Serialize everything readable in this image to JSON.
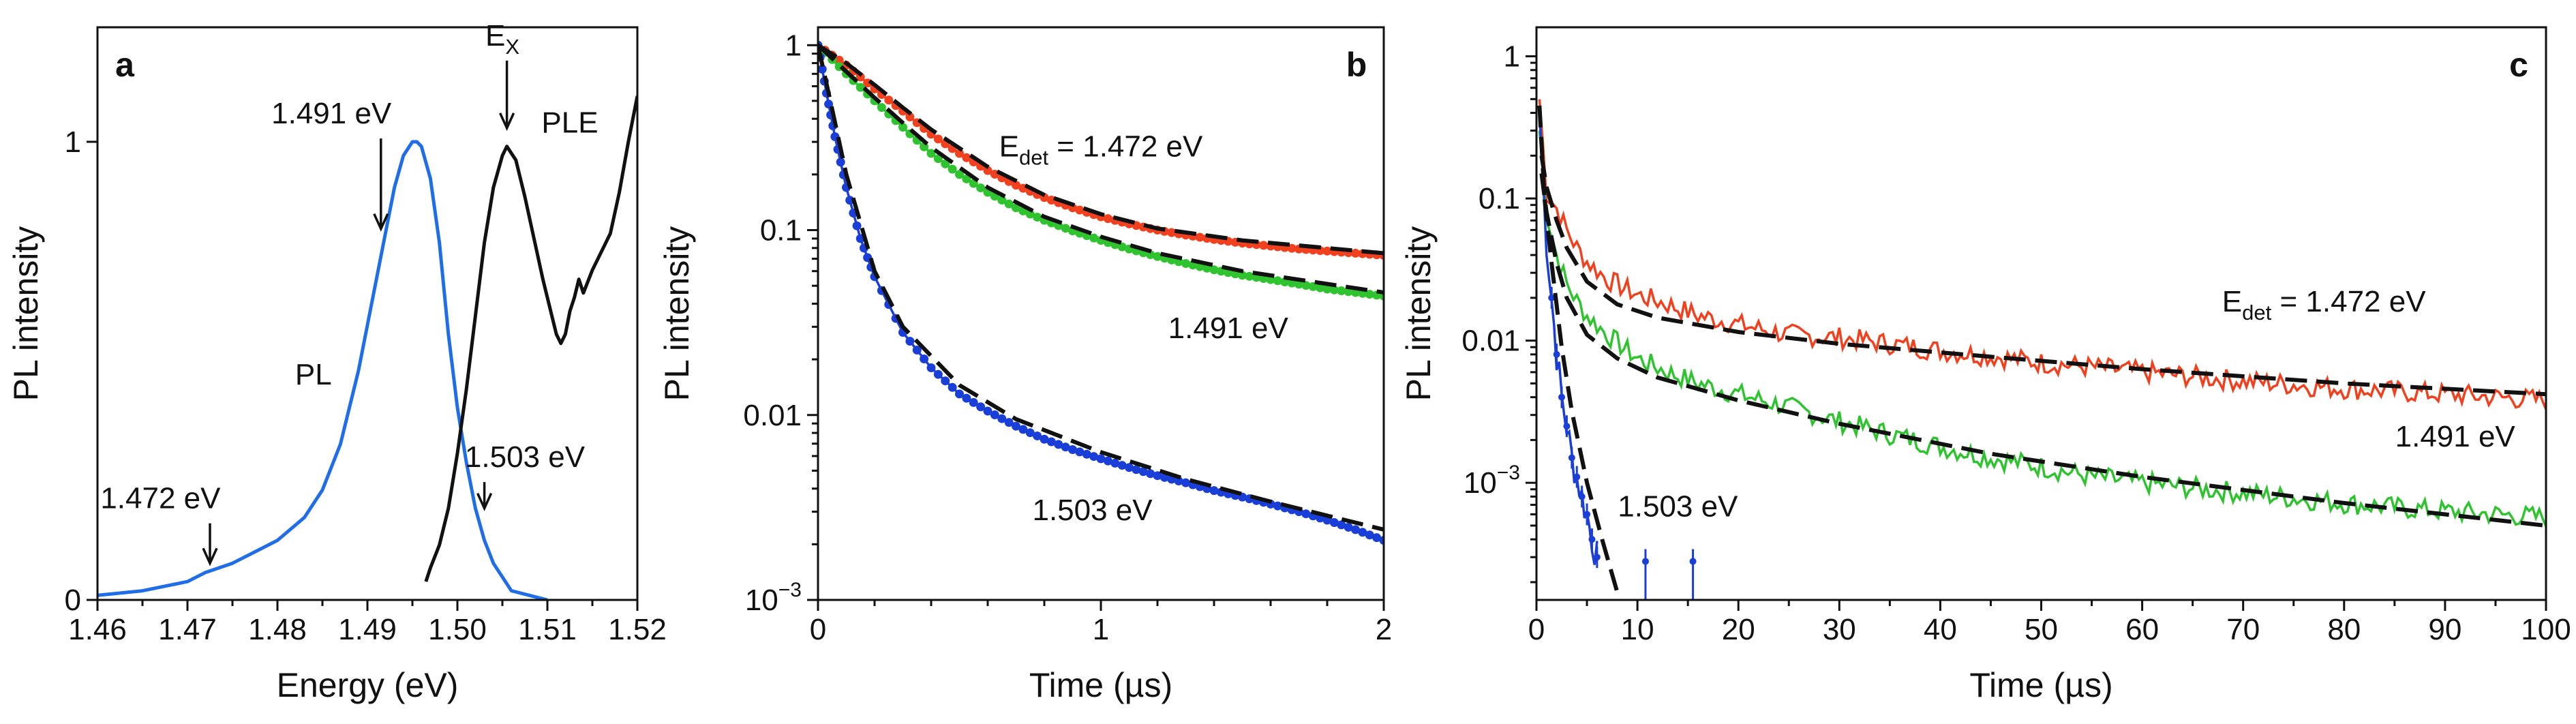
{
  "colors": {
    "blue": "#1f6ee8",
    "black": "#111111",
    "red": "#f0401e",
    "green": "#2fc42f",
    "navy": "#1a3fd8"
  },
  "chart_data": [
    {
      "type": "line",
      "panel_label": "a",
      "xlabel": "Energy (eV)",
      "ylabel": "PL intensity",
      "xlim": [
        1.46,
        1.52
      ],
      "ylim": [
        0,
        1.25
      ],
      "xticks": [
        "1.46",
        "1.47",
        "1.48",
        "1.49",
        "1.50",
        "1.51",
        "1.52"
      ],
      "yticks": [
        "0",
        "1"
      ],
      "series": [
        {
          "name": "PL",
          "color": "#1f6ee8",
          "x": [
            1.46,
            1.465,
            1.47,
            1.472,
            1.475,
            1.478,
            1.48,
            1.483,
            1.485,
            1.487,
            1.489,
            1.49,
            1.491,
            1.492,
            1.493,
            1.494,
            1.495,
            1.4955,
            1.496,
            1.497,
            1.498,
            1.499,
            1.5,
            1.501,
            1.502,
            1.503,
            1.504,
            1.505,
            1.506,
            1.508,
            1.51
          ],
          "y": [
            0.01,
            0.02,
            0.04,
            0.06,
            0.08,
            0.11,
            0.13,
            0.18,
            0.24,
            0.34,
            0.5,
            0.6,
            0.7,
            0.8,
            0.9,
            0.97,
            1.0,
            1.0,
            0.99,
            0.92,
            0.78,
            0.58,
            0.42,
            0.3,
            0.2,
            0.13,
            0.08,
            0.05,
            0.02,
            0.01,
            0.0
          ]
        },
        {
          "name": "PLE",
          "color": "#111111",
          "x": [
            1.4965,
            1.497,
            1.498,
            1.499,
            1.5,
            1.501,
            1.502,
            1.503,
            1.504,
            1.505,
            1.5055,
            1.5065,
            1.5075,
            1.5085,
            1.5095,
            1.5105,
            1.511,
            1.5115,
            1.512,
            1.5125,
            1.513,
            1.5135,
            1.514,
            1.515,
            1.516,
            1.517,
            1.518,
            1.519,
            1.5195,
            1.52
          ],
          "y": [
            0.04,
            0.07,
            0.12,
            0.2,
            0.32,
            0.46,
            0.62,
            0.78,
            0.9,
            0.97,
            0.99,
            0.96,
            0.88,
            0.79,
            0.7,
            0.62,
            0.58,
            0.56,
            0.58,
            0.63,
            0.66,
            0.7,
            0.67,
            0.72,
            0.76,
            0.8,
            0.89,
            1.0,
            1.05,
            1.1
          ]
        }
      ],
      "annotations": [
        {
          "text": "PL",
          "x": 1.484,
          "y": 0.47
        },
        {
          "text": "PLE",
          "x": 1.5125,
          "y": 1.02
        },
        {
          "text": "1.491 eV",
          "x": 1.486,
          "y": 1.04,
          "arrow_to": [
            1.4915,
            0.81
          ]
        },
        {
          "text": "1.472 eV",
          "x": 1.467,
          "y": 0.2,
          "arrow_to": [
            1.4725,
            0.08
          ]
        },
        {
          "text": "1.503 eV",
          "x": 1.5075,
          "y": 0.29,
          "arrow_to": [
            1.503,
            0.2
          ]
        },
        {
          "text": "E",
          "sub": "X",
          "x": 1.505,
          "y": 1.21,
          "arrow_to": [
            1.5055,
            1.03
          ]
        }
      ]
    },
    {
      "type": "line",
      "panel_label": "b",
      "xlabel": "Time (µs)",
      "ylabel": "PL intensity",
      "yscale": "log",
      "xlim": [
        0,
        2
      ],
      "ylim": [
        0.001,
        1.25
      ],
      "xticks": [
        "0",
        "1",
        "2"
      ],
      "yticks": [
        "1",
        "0.1",
        "0.01",
        "10^-3"
      ],
      "series": [
        {
          "name": "1.472 eV",
          "color": "#f0401e",
          "style": "markers",
          "x": [
            0,
            0.1,
            0.2,
            0.3,
            0.4,
            0.5,
            0.6,
            0.7,
            0.8,
            0.9,
            1.0,
            1.1,
            1.2,
            1.3,
            1.4,
            1.5,
            1.6,
            1.7,
            1.8,
            1.9,
            2.0
          ],
          "y": [
            1.0,
            0.78,
            0.58,
            0.44,
            0.33,
            0.26,
            0.21,
            0.175,
            0.15,
            0.132,
            0.118,
            0.108,
            0.1,
            0.094,
            0.089,
            0.085,
            0.082,
            0.079,
            0.077,
            0.075,
            0.073
          ]
        },
        {
          "name": "1.491 eV",
          "color": "#2fc42f",
          "style": "markers",
          "x": [
            0,
            0.1,
            0.2,
            0.3,
            0.4,
            0.5,
            0.6,
            0.7,
            0.8,
            0.9,
            1.0,
            1.1,
            1.2,
            1.3,
            1.4,
            1.5,
            1.6,
            1.7,
            1.8,
            1.9,
            2.0
          ],
          "y": [
            1.0,
            0.7,
            0.5,
            0.36,
            0.26,
            0.2,
            0.16,
            0.132,
            0.113,
            0.099,
            0.088,
            0.079,
            0.072,
            0.066,
            0.061,
            0.057,
            0.054,
            0.051,
            0.048,
            0.046,
            0.044
          ]
        },
        {
          "name": "1.503 eV",
          "color": "#1a3fd8",
          "style": "markers",
          "x": [
            0,
            0.03,
            0.06,
            0.1,
            0.15,
            0.2,
            0.3,
            0.4,
            0.5,
            0.6,
            0.7,
            0.8,
            0.9,
            1.0,
            1.1,
            1.2,
            1.3,
            1.4,
            1.5,
            1.6,
            1.7,
            1.8,
            1.9,
            2.0
          ],
          "y": [
            1.0,
            0.55,
            0.32,
            0.17,
            0.09,
            0.056,
            0.028,
            0.018,
            0.013,
            0.0105,
            0.0087,
            0.0074,
            0.0065,
            0.0058,
            0.0052,
            0.0047,
            0.0043,
            0.0039,
            0.0036,
            0.0033,
            0.003,
            0.0027,
            0.0024,
            0.0021
          ]
        },
        {
          "name": "fit 1.472 eV",
          "color": "#111111",
          "style": "dashed",
          "x": [
            0,
            0.1,
            0.2,
            0.3,
            0.4,
            0.6,
            0.8,
            1.0,
            1.2,
            1.5,
            2.0
          ],
          "y": [
            1.0,
            0.8,
            0.61,
            0.46,
            0.35,
            0.22,
            0.155,
            0.122,
            0.102,
            0.088,
            0.075
          ]
        },
        {
          "name": "fit 1.491 eV",
          "color": "#111111",
          "style": "dashed",
          "x": [
            0,
            0.1,
            0.2,
            0.3,
            0.4,
            0.6,
            0.8,
            1.0,
            1.2,
            1.5,
            2.0
          ],
          "y": [
            1.0,
            0.72,
            0.52,
            0.38,
            0.28,
            0.17,
            0.118,
            0.092,
            0.075,
            0.06,
            0.046
          ]
        },
        {
          "name": "fit 1.503 eV",
          "color": "#111111",
          "style": "dashed",
          "x": [
            0,
            0.05,
            0.1,
            0.2,
            0.3,
            0.5,
            0.7,
            1.0,
            1.3,
            1.6,
            2.0
          ],
          "y": [
            1.0,
            0.45,
            0.2,
            0.06,
            0.03,
            0.0145,
            0.0095,
            0.0063,
            0.0045,
            0.0034,
            0.0024
          ]
        }
      ],
      "annotations": [
        {
          "text": "E",
          "sub": "det",
          "rest": " = 1.472 eV",
          "x": 1.0,
          "y": 0.25
        },
        {
          "text": "1.491 eV",
          "x": 1.45,
          "y": 0.026
        },
        {
          "text": "1.503 eV",
          "x": 0.97,
          "y": 0.0027
        }
      ]
    },
    {
      "type": "line",
      "panel_label": "c",
      "xlabel": "Time (µs)",
      "ylabel": "PL intensity",
      "yscale": "log",
      "xlim": [
        0,
        100
      ],
      "ylim": [
        0.00015,
        1.6
      ],
      "xticks": [
        "0",
        "10",
        "20",
        "30",
        "40",
        "50",
        "60",
        "70",
        "80",
        "90",
        "100"
      ],
      "yticks": [
        "1",
        "0.1",
        "0.01",
        "10^-3"
      ],
      "series": [
        {
          "name": "1.472 eV",
          "color": "#f0401e",
          "style": "noisy",
          "x": [
            0.3,
            1,
            2,
            3,
            4,
            5,
            7,
            10,
            13,
            16,
            20,
            25,
            30,
            35,
            40,
            45,
            50,
            55,
            60,
            65,
            70,
            75,
            80,
            85,
            90,
            95,
            100
          ],
          "y": [
            0.5,
            0.11,
            0.085,
            0.06,
            0.045,
            0.036,
            0.027,
            0.021,
            0.018,
            0.015,
            0.013,
            0.011,
            0.0105,
            0.0095,
            0.0085,
            0.0078,
            0.007,
            0.0065,
            0.006,
            0.0056,
            0.0052,
            0.0049,
            0.0046,
            0.0044,
            0.0042,
            0.004,
            0.0038
          ]
        },
        {
          "name": "1.491 eV",
          "color": "#2fc42f",
          "style": "noisy",
          "x": [
            0.3,
            1,
            2,
            3,
            4,
            5,
            7,
            10,
            13,
            16,
            20,
            25,
            30,
            35,
            40,
            45,
            50,
            55,
            60,
            65,
            70,
            75,
            80,
            85,
            90,
            95,
            100
          ],
          "y": [
            0.3,
            0.08,
            0.04,
            0.025,
            0.019,
            0.015,
            0.011,
            0.0075,
            0.006,
            0.005,
            0.0042,
            0.0034,
            0.0027,
            0.0022,
            0.0018,
            0.0015,
            0.0013,
            0.0011,
            0.001,
            0.00092,
            0.00085,
            0.00078,
            0.00072,
            0.00067,
            0.00063,
            0.0006,
            0.00057
          ]
        },
        {
          "name": "1.503 eV",
          "color": "#1a3fd8",
          "style": "noisy",
          "x": [
            0.3,
            1,
            1.5,
            2,
            2.5,
            3,
            3.5,
            4,
            4.5,
            5,
            5.5,
            6,
            10.8,
            15.5
          ],
          "y": [
            0.4,
            0.05,
            0.02,
            0.008,
            0.004,
            0.0025,
            0.0015,
            0.0011,
            0.0008,
            0.0006,
            0.0004,
            0.0003,
            0.00028,
            0.00028
          ]
        },
        {
          "name": "fit 1.472 eV",
          "color": "#111111",
          "style": "dashed",
          "x": [
            0.5,
            1,
            2,
            3,
            5,
            8,
            12,
            20,
            30,
            45,
            60,
            80,
            100
          ],
          "y": [
            0.2,
            0.12,
            0.07,
            0.045,
            0.026,
            0.018,
            0.0145,
            0.0115,
            0.0095,
            0.0077,
            0.0063,
            0.005,
            0.0042
          ]
        },
        {
          "name": "fit 1.491 eV",
          "color": "#111111",
          "style": "dashed",
          "x": [
            0.5,
            1,
            2,
            3,
            5,
            8,
            12,
            20,
            30,
            45,
            60,
            80,
            100
          ],
          "y": [
            0.15,
            0.08,
            0.035,
            0.02,
            0.011,
            0.0075,
            0.0055,
            0.0038,
            0.0026,
            0.0016,
            0.0011,
            0.00072,
            0.0005
          ]
        },
        {
          "name": "fit 1.503 eV",
          "color": "#111111",
          "style": "dashed",
          "x": [
            0.3,
            0.8,
            1.5,
            2.5,
            3.5,
            5,
            6.5,
            8
          ],
          "y": [
            0.45,
            0.1,
            0.035,
            0.009,
            0.0032,
            0.001,
            0.0004,
            0.00017
          ]
        }
      ],
      "annotations": [
        {
          "text": "E",
          "sub": "det",
          "rest": " = 1.472 eV",
          "x": 78,
          "y": 0.016
        },
        {
          "text": "1.491 eV",
          "x": 91,
          "y": 0.0018
        },
        {
          "text": "1.503 eV",
          "x": 14,
          "y": 0.00058
        }
      ]
    }
  ]
}
